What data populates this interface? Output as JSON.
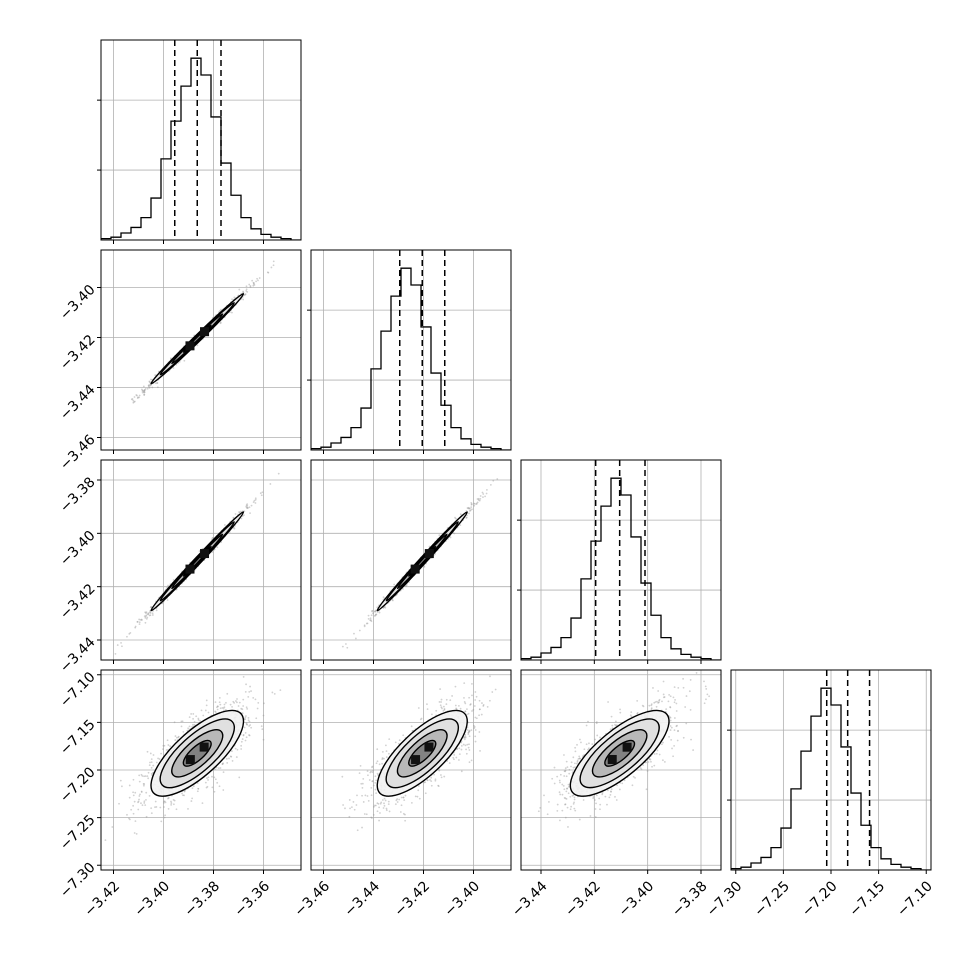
{
  "chart_data": {
    "type": "corner",
    "n_params": 4,
    "grid": true,
    "params": [
      {
        "range": [
          -3.425,
          -3.345
        ],
        "ticks": [
          -3.42,
          -3.4,
          -3.38,
          -3.36
        ],
        "tick_labels": [
          "−3.42",
          "−3.40",
          "−3.38",
          "−3.36"
        ],
        "quantiles": [
          -3.3955,
          -3.3865,
          -3.377
        ],
        "hist_counts": [
          1,
          2,
          5,
          9,
          16,
          30,
          58,
          85,
          110,
          130,
          118,
          88,
          55,
          32,
          16,
          8,
          4,
          2,
          1,
          0
        ]
      },
      {
        "range": [
          -3.465,
          -3.385
        ],
        "ticks": [
          -3.46,
          -3.44,
          -3.42,
          -3.4
        ],
        "tick_labels": [
          "−3.46",
          "−3.44",
          "−3.42",
          "−3.40"
        ],
        "quantiles": [
          -3.4295,
          -3.4205,
          -3.4115
        ],
        "hist_counts": [
          1,
          2,
          5,
          9,
          16,
          30,
          58,
          85,
          110,
          130,
          118,
          88,
          55,
          32,
          16,
          8,
          4,
          2,
          1,
          0
        ]
      },
      {
        "range": [
          -3.4475,
          -3.3725
        ],
        "ticks": [
          -3.44,
          -3.42,
          -3.4,
          -3.38
        ],
        "tick_labels": [
          "−3.44",
          "−3.42",
          "−3.40",
          "−3.38"
        ],
        "quantiles": [
          -3.4195,
          -3.4105,
          -3.401
        ],
        "hist_counts": [
          1,
          2,
          5,
          9,
          16,
          30,
          58,
          85,
          110,
          130,
          118,
          88,
          55,
          32,
          16,
          8,
          4,
          2,
          1,
          0
        ]
      },
      {
        "range": [
          -7.305,
          -7.095
        ],
        "ticks": [
          -7.3,
          -7.25,
          -7.2,
          -7.15,
          -7.1
        ],
        "tick_labels": [
          "−7.30",
          "−7.25",
          "−7.20",
          "−7.15",
          "−7.10"
        ],
        "quantiles": [
          -7.2045,
          -7.1825,
          -7.1595
        ],
        "hist_counts": [
          1,
          2,
          5,
          9,
          16,
          30,
          58,
          85,
          110,
          130,
          118,
          88,
          55,
          32,
          16,
          8,
          4,
          2,
          1,
          0
        ]
      }
    ],
    "row_tick_values": [
      null,
      [
        -3.46,
        -3.44,
        -3.42,
        -3.4
      ],
      [
        -3.44,
        -3.42,
        -3.4,
        -3.38
      ],
      [
        -7.3,
        -7.25,
        -7.2,
        -7.15,
        -7.1
      ]
    ],
    "row_tick_labels": [
      null,
      [
        "−3.46",
        "−3.44",
        "−3.42",
        "−3.40"
      ],
      [
        "−3.44",
        "−3.42",
        "−3.40",
        "−3.38"
      ],
      [
        "−7.30",
        "−7.25",
        "−7.20",
        "−7.15",
        "−7.10"
      ]
    ],
    "correlations": {
      "1-0": 0.995,
      "2-0": 0.995,
      "2-1": 0.995,
      "3-0": 0.75,
      "3-1": 0.75,
      "3-2": 0.75
    },
    "colors": {
      "scatter": "#9a9a9a",
      "contour": "#000000",
      "grid": "#b0b0b0",
      "axes": "#000000"
    }
  }
}
